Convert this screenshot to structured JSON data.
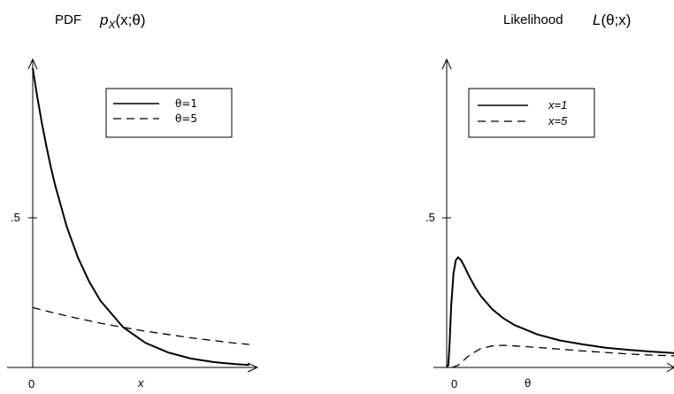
{
  "chart_data": [
    {
      "type": "line",
      "title_text": "PDF",
      "title_math": "p",
      "title_sub": "X",
      "title_args": "(x;θ)",
      "xlabel": "x",
      "ylabel": "",
      "x_tick_labels": [
        "0"
      ],
      "y_tick_labels": [
        ".5"
      ],
      "xlim": [
        0,
        5
      ],
      "ylim": [
        0,
        1
      ],
      "legend_position": "top-right",
      "series": [
        {
          "name": "θ=1",
          "style": "solid",
          "x": [
            0,
            0.1,
            0.2,
            0.3,
            0.4,
            0.5,
            0.75,
            1.0,
            1.25,
            1.5,
            2.0,
            2.5,
            3.0,
            3.5,
            4.0,
            4.5,
            4.8
          ],
          "y": [
            1.0,
            0.905,
            0.819,
            0.741,
            0.67,
            0.607,
            0.472,
            0.368,
            0.287,
            0.223,
            0.135,
            0.082,
            0.05,
            0.03,
            0.018,
            0.011,
            0.008
          ]
        },
        {
          "name": "θ=5",
          "style": "dashed",
          "x": [
            0,
            0.5,
            1.0,
            1.5,
            2.0,
            2.5,
            3.0,
            3.5,
            4.0,
            4.5,
            4.8
          ],
          "y": [
            0.2,
            0.181,
            0.164,
            0.148,
            0.134,
            0.121,
            0.11,
            0.099,
            0.09,
            0.081,
            0.077
          ]
        }
      ]
    },
    {
      "type": "line",
      "title_text": "Likelihood",
      "title_math": "L",
      "title_sub": "",
      "title_args": "(θ;x)",
      "xlabel": "θ",
      "ylabel": "",
      "x_tick_labels": [
        "0"
      ],
      "y_tick_labels": [
        ".5"
      ],
      "xlim": [
        0,
        20
      ],
      "ylim": [
        0,
        1
      ],
      "legend_position": "top-right",
      "series": [
        {
          "name": "x=1",
          "style": "solid",
          "x": [
            0.05,
            0.15,
            0.25,
            0.4,
            0.6,
            0.8,
            1.0,
            1.25,
            1.5,
            2.0,
            2.5,
            3.0,
            4.0,
            5.0,
            6.0,
            8.0,
            10.0,
            12.0,
            14.0,
            16.0,
            18.0,
            20.0
          ],
          "y": [
            0.0,
            0.01,
            0.073,
            0.205,
            0.314,
            0.358,
            0.368,
            0.359,
            0.342,
            0.303,
            0.268,
            0.239,
            0.195,
            0.164,
            0.141,
            0.11,
            0.09,
            0.077,
            0.066,
            0.059,
            0.053,
            0.048
          ]
        },
        {
          "name": "x=5",
          "style": "dashed",
          "x": [
            0.5,
            1.0,
            1.5,
            2.0,
            3.0,
            4.0,
            5.0,
            6.0,
            8.0,
            10.0,
            12.0,
            14.0,
            16.0,
            18.0,
            20.0
          ],
          "y": [
            0.0,
            0.007,
            0.024,
            0.041,
            0.063,
            0.072,
            0.074,
            0.072,
            0.067,
            0.061,
            0.055,
            0.05,
            0.045,
            0.041,
            0.039
          ]
        }
      ]
    }
  ]
}
